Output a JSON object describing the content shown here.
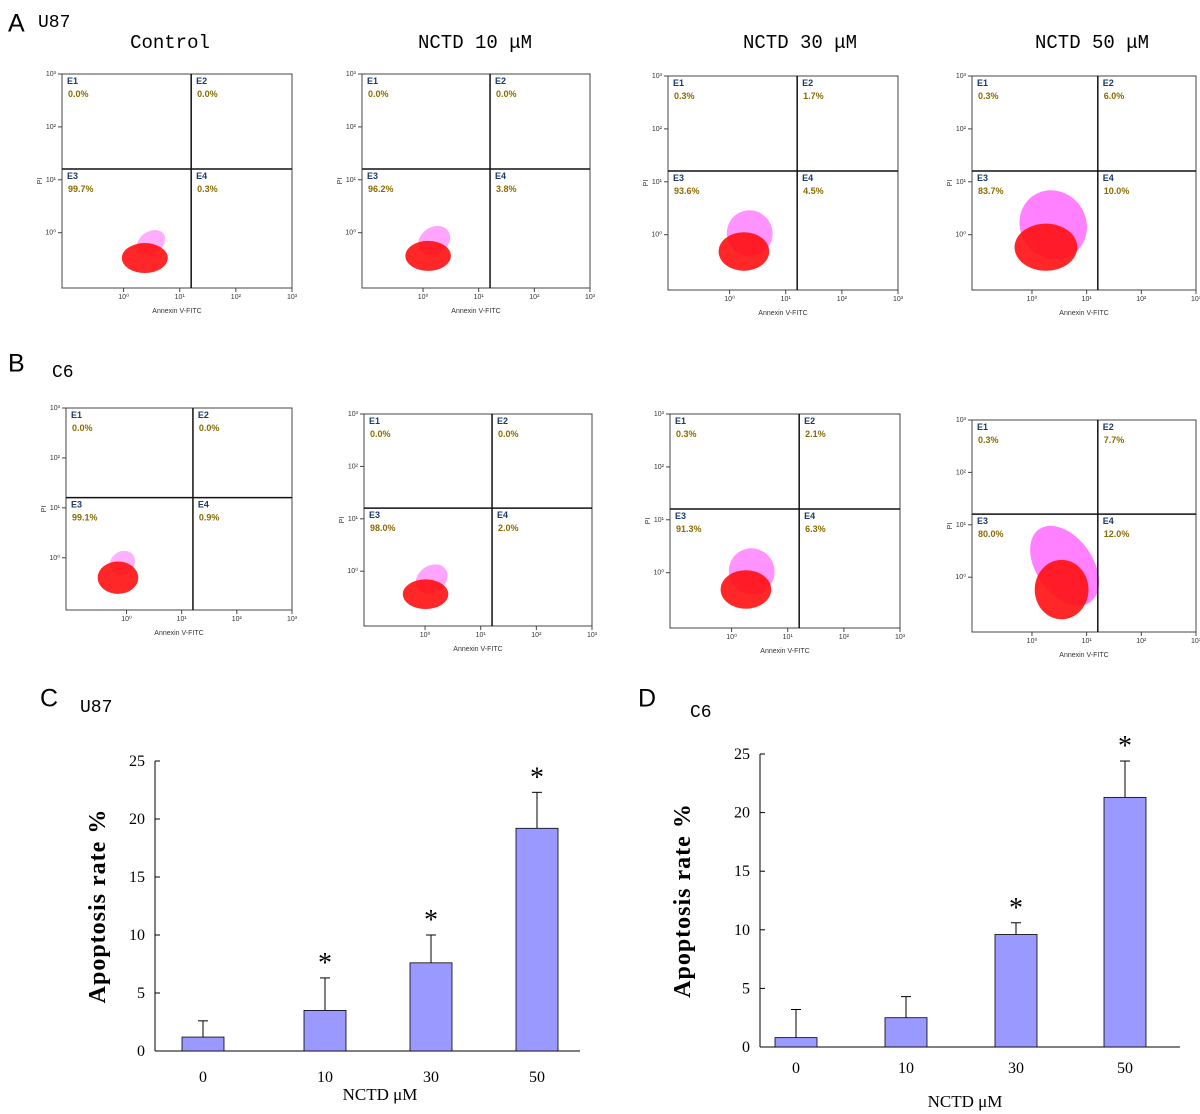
{
  "chart_data": [
    {
      "type": "quadrant",
      "panel": "A",
      "cell_line": "U87",
      "title": "Control",
      "x_label": "Annexin V-FITC",
      "y_label": "PI",
      "log_scale": true,
      "xlim": [
        0.08,
        1000
      ],
      "ylim": [
        0.09,
        1000
      ],
      "xticks": [
        {
          "value": 1,
          "label": "10⁰"
        },
        {
          "value": 10,
          "label": "10¹"
        },
        {
          "value": 100,
          "label": "10²"
        },
        {
          "value": 1000,
          "label": "10³"
        }
      ],
      "yticks": [
        {
          "value": 1,
          "label": "10⁰"
        },
        {
          "value": 10,
          "label": "10¹"
        },
        {
          "value": 100,
          "label": "10²"
        },
        {
          "value": 1000,
          "label": "10³"
        }
      ],
      "gate": [
        16,
        16
      ],
      "quadrants": {
        "names": [
          "E1",
          "E2",
          "E3",
          "E4"
        ],
        "values": [
          0.0,
          0.0,
          99.7,
          0.3
        ],
        "value_labels": [
          "0.0%",
          "0.0%",
          "99.7%",
          "0.3%"
        ]
      }
    },
    {
      "type": "quadrant",
      "title": "NCTD 10 μM",
      "x_label": "Annexin V-FITC",
      "y_label": "PI",
      "log_scale": true,
      "xlim": [
        0.08,
        1000
      ],
      "ylim": [
        0.09,
        1000
      ],
      "xticks": [
        {
          "value": 1,
          "label": "10⁰"
        },
        {
          "value": 10,
          "label": "10¹"
        },
        {
          "value": 100,
          "label": "10²"
        },
        {
          "value": 1000,
          "label": "10³"
        }
      ],
      "yticks": [
        {
          "value": 1,
          "label": "10⁰"
        },
        {
          "value": 10,
          "label": "10¹"
        },
        {
          "value": 100,
          "label": "10²"
        },
        {
          "value": 1000,
          "label": "10³"
        }
      ],
      "gate": [
        16,
        16
      ],
      "quadrants": {
        "names": [
          "E1",
          "E2",
          "E3",
          "E4"
        ],
        "values": [
          0.0,
          0.0,
          96.2,
          3.8
        ],
        "value_labels": [
          "0.0%",
          "0.0%",
          "96.2%",
          "3.8%"
        ]
      }
    },
    {
      "type": "quadrant",
      "title": "NCTD 30 μM",
      "x_label": "Annexin V-FITC",
      "y_label": "PI",
      "log_scale": true,
      "xlim": [
        0.08,
        1000
      ],
      "ylim": [
        0.09,
        1000
      ],
      "xticks": [
        {
          "value": 1,
          "label": "10⁰"
        },
        {
          "value": 10,
          "label": "10¹"
        },
        {
          "value": 100,
          "label": "10²"
        },
        {
          "value": 1000,
          "label": "10³"
        }
      ],
      "yticks": [
        {
          "value": 1,
          "label": "10⁰"
        },
        {
          "value": 10,
          "label": "10¹"
        },
        {
          "value": 100,
          "label": "10²"
        },
        {
          "value": 1000,
          "label": "10³"
        }
      ],
      "gate": [
        16,
        16
      ],
      "quadrants": {
        "names": [
          "E1",
          "E2",
          "E3",
          "E4"
        ],
        "values": [
          0.3,
          1.7,
          93.6,
          4.5
        ],
        "value_labels": [
          "0.3%",
          "1.7%",
          "93.6%",
          "4.5%"
        ]
      }
    },
    {
      "type": "quadrant",
      "title": "NCTD 50 μM",
      "x_label": "Annexin V-FITC",
      "y_label": "PI",
      "log_scale": true,
      "xlim": [
        0.08,
        1000
      ],
      "ylim": [
        0.09,
        1000
      ],
      "xticks": [
        {
          "value": 1,
          "label": "10⁰"
        },
        {
          "value": 10,
          "label": "10¹"
        },
        {
          "value": 100,
          "label": "10²"
        },
        {
          "value": 1000,
          "label": "10³"
        }
      ],
      "yticks": [
        {
          "value": 1,
          "label": "10⁰"
        },
        {
          "value": 10,
          "label": "10¹"
        },
        {
          "value": 100,
          "label": "10²"
        },
        {
          "value": 1000,
          "label": "10³"
        }
      ],
      "gate": [
        16,
        16
      ],
      "quadrants": {
        "names": [
          "E1",
          "E2",
          "E3",
          "E4"
        ],
        "values": [
          0.3,
          6.0,
          83.7,
          10.0
        ],
        "value_labels": [
          "0.3%",
          "6.0%",
          "83.7%",
          "10.0%"
        ]
      }
    },
    {
      "type": "quadrant",
      "panel": "B",
      "cell_line": "C6",
      "x_label": "Annexin V-FITC",
      "y_label": "PI",
      "log_scale": true,
      "xlim": [
        0.08,
        1000
      ],
      "ylim": [
        0.09,
        1000
      ],
      "xticks": [
        {
          "value": 1,
          "label": "10⁰"
        },
        {
          "value": 10,
          "label": "10¹"
        },
        {
          "value": 100,
          "label": "10²"
        },
        {
          "value": 1000,
          "label": "10³"
        }
      ],
      "yticks": [
        {
          "value": 1,
          "label": "10⁰"
        },
        {
          "value": 10,
          "label": "10¹"
        },
        {
          "value": 100,
          "label": "10²"
        },
        {
          "value": 1000,
          "label": "10³"
        }
      ],
      "gate": [
        16,
        16
      ],
      "quadrants": {
        "names": [
          "E1",
          "E2",
          "E3",
          "E4"
        ],
        "values": [
          0.0,
          0.0,
          99.1,
          0.9
        ],
        "value_labels": [
          "0.0%",
          "0.0%",
          "99.1%",
          "0.9%"
        ]
      }
    },
    {
      "type": "quadrant",
      "x_label": "Annexin V-FITC",
      "y_label": "PI",
      "log_scale": true,
      "xlim": [
        0.08,
        1000
      ],
      "ylim": [
        0.09,
        1000
      ],
      "xticks": [
        {
          "value": 1,
          "label": "10⁰"
        },
        {
          "value": 10,
          "label": "10¹"
        },
        {
          "value": 100,
          "label": "10²"
        },
        {
          "value": 1000,
          "label": "10³"
        }
      ],
      "yticks": [
        {
          "value": 1,
          "label": "10⁰"
        },
        {
          "value": 10,
          "label": "10¹"
        },
        {
          "value": 100,
          "label": "10²"
        },
        {
          "value": 1000,
          "label": "10³"
        }
      ],
      "gate": [
        16,
        16
      ],
      "quadrants": {
        "names": [
          "E1",
          "E2",
          "E3",
          "E4"
        ],
        "values": [
          0.0,
          0.0,
          98.0,
          2.0
        ],
        "value_labels": [
          "0.0%",
          "0.0%",
          "98.0%",
          "2.0%"
        ]
      }
    },
    {
      "type": "quadrant",
      "x_label": "Annexin V-FITC",
      "y_label": "PI",
      "log_scale": true,
      "xlim": [
        0.08,
        1000
      ],
      "ylim": [
        0.09,
        1000
      ],
      "xticks": [
        {
          "value": 1,
          "label": "10⁰"
        },
        {
          "value": 10,
          "label": "10¹"
        },
        {
          "value": 100,
          "label": "10²"
        },
        {
          "value": 1000,
          "label": "10³"
        }
      ],
      "yticks": [
        {
          "value": 1,
          "label": "10⁰"
        },
        {
          "value": 10,
          "label": "10¹"
        },
        {
          "value": 100,
          "label": "10²"
        },
        {
          "value": 1000,
          "label": "10³"
        }
      ],
      "gate": [
        16,
        16
      ],
      "quadrants": {
        "names": [
          "E1",
          "E2",
          "E3",
          "E4"
        ],
        "values": [
          0.3,
          2.1,
          91.3,
          6.3
        ],
        "value_labels": [
          "0.3%",
          "2.1%",
          "91.3%",
          "6.3%"
        ]
      }
    },
    {
      "type": "quadrant",
      "x_label": "Annexin V-FITC",
      "y_label": "PI",
      "log_scale": true,
      "xlim": [
        0.08,
        1000
      ],
      "ylim": [
        0.09,
        1000
      ],
      "xticks": [
        {
          "value": 1,
          "label": "10⁰"
        },
        {
          "value": 10,
          "label": "10¹"
        },
        {
          "value": 100,
          "label": "10²"
        },
        {
          "value": 1000,
          "label": "10³"
        }
      ],
      "yticks": [
        {
          "value": 1,
          "label": "10⁰"
        },
        {
          "value": 10,
          "label": "10¹"
        },
        {
          "value": 100,
          "label": "10²"
        },
        {
          "value": 1000,
          "label": "10³"
        }
      ],
      "gate": [
        16,
        16
      ],
      "quadrants": {
        "names": [
          "E1",
          "E2",
          "E3",
          "E4"
        ],
        "values": [
          0.3,
          7.7,
          80.0,
          12.0
        ],
        "value_labels": [
          "0.3%",
          "7.7%",
          "80.0%",
          "12.0%"
        ]
      }
    },
    {
      "type": "bar",
      "panel": "C",
      "cell_line": "U87",
      "y_label": "Apoptosis rate %",
      "x_label": "NCTD μM",
      "categories": [
        "0",
        "10",
        "30",
        "50"
      ],
      "values": [
        1.2,
        3.5,
        7.6,
        19.2
      ],
      "errors": [
        1.4,
        2.8,
        2.4,
        3.1
      ],
      "significant": [
        false,
        true,
        true,
        true
      ],
      "significance_marker": "*",
      "color": "#9999ff",
      "ylim": [
        0,
        25
      ],
      "yticks": [
        0,
        5,
        10,
        15,
        20,
        25
      ]
    },
    {
      "type": "bar",
      "panel": "D",
      "cell_line": "C6",
      "y_label": "Apoptosis rate %",
      "x_label": "NCTD μM",
      "categories": [
        "0",
        "10",
        "30",
        "50"
      ],
      "values": [
        0.8,
        2.5,
        9.6,
        21.3
      ],
      "errors": [
        2.4,
        1.8,
        1.0,
        3.1
      ],
      "significant": [
        false,
        false,
        true,
        true
      ],
      "significance_marker": "*",
      "color": "#9999ff",
      "ylim": [
        0,
        25
      ],
      "yticks": [
        0,
        5,
        10,
        15,
        20,
        25
      ]
    }
  ]
}
